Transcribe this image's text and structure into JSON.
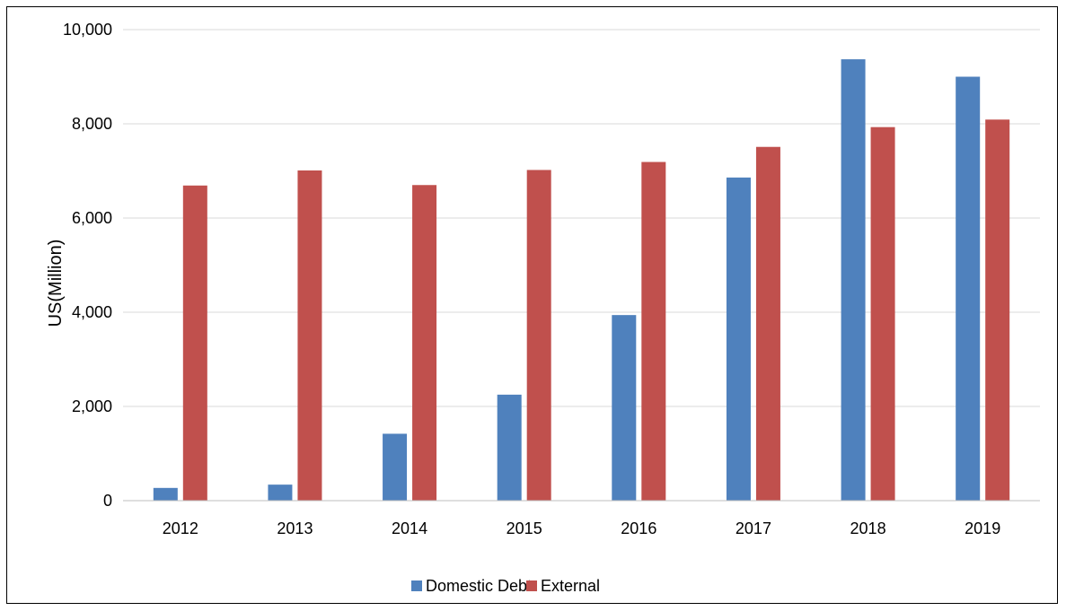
{
  "chart_data": {
    "type": "bar",
    "ylabel": "US(Million)",
    "xlabel": "",
    "ylim": [
      0,
      10000
    ],
    "yticks": [
      0,
      2000,
      4000,
      6000,
      8000,
      10000
    ],
    "ytick_labels": [
      "0",
      "2,000",
      "4,000",
      "6,000",
      "8,000",
      "10,000"
    ],
    "categories": [
      "2012",
      "2013",
      "2014",
      "2015",
      "2016",
      "2017",
      "2018",
      "2019"
    ],
    "series": [
      {
        "name": "Domestic Debt",
        "color": "#4f81bd",
        "values": [
          270,
          340,
          1420,
          2250,
          3940,
          6860,
          9370,
          9000
        ]
      },
      {
        "name": "External",
        "color": "#c0504d",
        "values": [
          6690,
          7010,
          6700,
          7020,
          7190,
          7510,
          7930,
          8090
        ]
      }
    ],
    "grid": true,
    "legend_position": "bottom"
  }
}
